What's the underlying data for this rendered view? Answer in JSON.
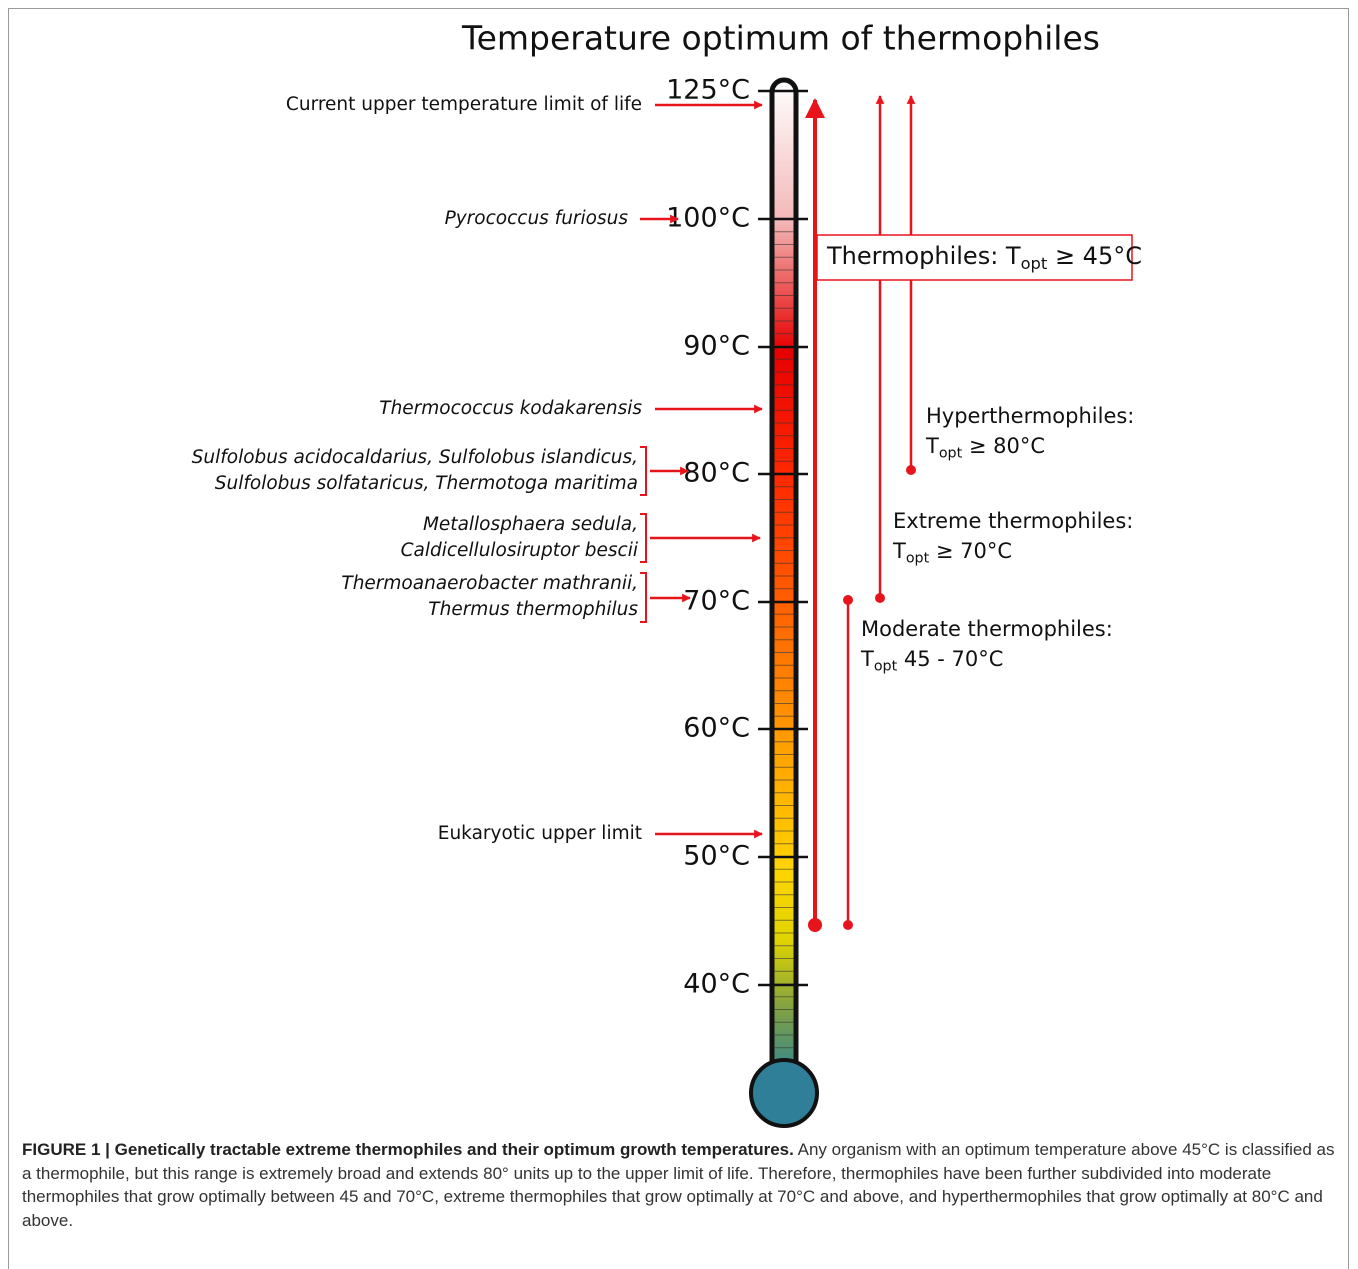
{
  "title": "Temperature optimum of thermophiles",
  "scale_labels": [
    "125°C",
    "100°C",
    "90°C",
    "80°C",
    "70°C",
    "60°C",
    "50°C",
    "40°C"
  ],
  "annotations": [
    {
      "lines": [
        "Current upper temperature limit of life"
      ],
      "italic": false
    },
    {
      "lines": [
        "Pyrococcus furiosus"
      ],
      "italic": true
    },
    {
      "lines": [
        "Thermococcus kodakarensis"
      ],
      "italic": true
    },
    {
      "lines": [
        "Sulfolobus acidocaldarius, Sulfolobus islandicus,",
        "Sulfolobus solfataricus, Thermotoga maritima"
      ],
      "italic": true
    },
    {
      "lines": [
        "Metallosphaera sedula,",
        "Caldicellulosiruptor bescii"
      ],
      "italic": true
    },
    {
      "lines": [
        "Thermoanaerobacter mathranii,",
        "Thermus thermophilus"
      ],
      "italic": true
    },
    {
      "lines": [
        "Eukaryotic upper limit"
      ],
      "italic": false
    }
  ],
  "thermophiles_box": {
    "prefix": "Thermophiles: T",
    "sub": "opt",
    "suffix": " ≥ 45°C"
  },
  "groups": [
    {
      "name": "Hyperthermophiles:",
      "prefix": "T",
      "sub": "opt",
      "suffix": " ≥ 80°C"
    },
    {
      "name": "Extreme thermophiles:",
      "prefix": "T",
      "sub": "opt",
      "suffix": " ≥ 70°C"
    },
    {
      "name": "Moderate thermophiles:",
      "prefix": "T",
      "sub": "opt",
      "suffix": " 45 - 70°C"
    }
  ],
  "caption": {
    "heading": "FIGURE 1 | Genetically tractable extreme thermophiles and their optimum growth temperatures.",
    "text": " Any organism with an optimum temperature above 45°C is classified as a thermophile, but this range is extremely broad and extends 80° units up to the upper limit of life. Therefore, thermophiles have been further subdivided into moderate thermophiles that grow optimally between 45 and 70°C, extreme thermophiles that grow optimally at 70°C and above, and hyperthermophiles that grow optimally at 80°C and above."
  }
}
